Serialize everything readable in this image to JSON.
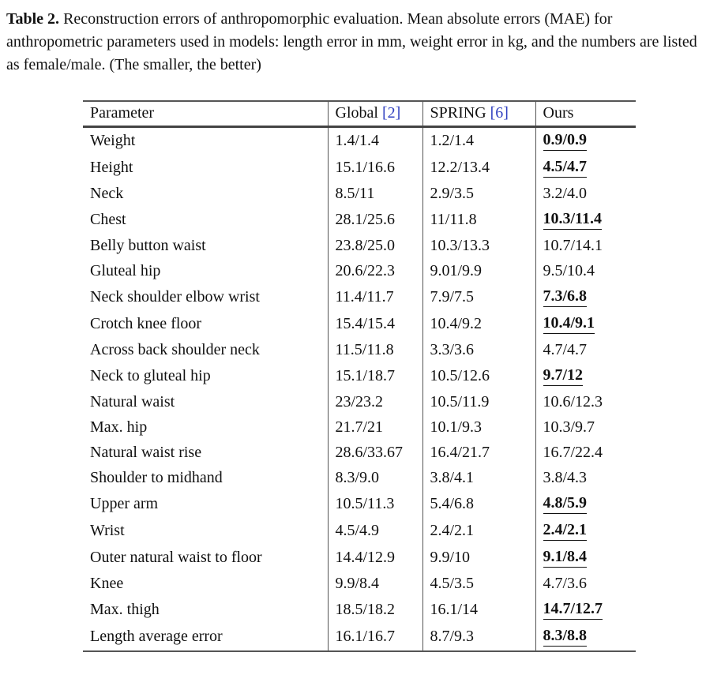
{
  "caption": {
    "label": "Table 2.",
    "text": " Reconstruction errors of anthropomorphic evaluation. Mean absolute errors (MAE) for anthropometric parameters used in models: length error in mm, weight error in kg, and the numbers are listed as female/male. (The smaller, the better)"
  },
  "colors": {
    "citation_blue": "#3040c0",
    "rule_dark": "#444444",
    "text": "#111111"
  },
  "table": {
    "headers": [
      {
        "text": "Parameter"
      },
      {
        "text": "Global ",
        "cite": "[2]"
      },
      {
        "text": "SPRING ",
        "cite": "[6]"
      },
      {
        "text": "Ours"
      }
    ],
    "rows": [
      {
        "parameter": "Weight",
        "global": "1.4/1.4",
        "spring": "1.2/1.4",
        "ours": "0.9/0.9",
        "best": true
      },
      {
        "parameter": "Height",
        "global": "15.1/16.6",
        "spring": "12.2/13.4",
        "ours": "4.5/4.7",
        "best": true
      },
      {
        "parameter": "Neck",
        "global": "8.5/11",
        "spring": "2.9/3.5",
        "ours": "3.2/4.0",
        "best": false
      },
      {
        "parameter": "Chest",
        "global": "28.1/25.6",
        "spring": "11/11.8",
        "ours": "10.3/11.4",
        "best": true
      },
      {
        "parameter": "Belly button waist",
        "global": "23.8/25.0",
        "spring": "10.3/13.3",
        "ours": "10.7/14.1",
        "best": false
      },
      {
        "parameter": "Gluteal hip",
        "global": "20.6/22.3",
        "spring": "9.01/9.9",
        "ours": "9.5/10.4",
        "best": false
      },
      {
        "parameter": "Neck shoulder elbow wrist",
        "global": "11.4/11.7",
        "spring": "7.9/7.5",
        "ours": "7.3/6.8",
        "best": true
      },
      {
        "parameter": "Crotch knee floor",
        "global": "15.4/15.4",
        "spring": "10.4/9.2",
        "ours": "10.4/9.1",
        "best": true
      },
      {
        "parameter": "Across back shoulder neck",
        "global": "11.5/11.8",
        "spring": "3.3/3.6",
        "ours": "4.7/4.7",
        "best": false
      },
      {
        "parameter": "Neck to gluteal hip",
        "global": "15.1/18.7",
        "spring": "10.5/12.6",
        "ours": "9.7/12",
        "best": true
      },
      {
        "parameter": "Natural waist",
        "global": "23/23.2",
        "spring": "10.5/11.9",
        "ours": "10.6/12.3",
        "best": false
      },
      {
        "parameter": "Max. hip",
        "global": "21.7/21",
        "spring": "10.1/9.3",
        "ours": "10.3/9.7",
        "best": false
      },
      {
        "parameter": "Natural waist rise",
        "global": "28.6/33.67",
        "spring": "16.4/21.7",
        "ours": "16.7/22.4",
        "best": false
      },
      {
        "parameter": "Shoulder to midhand",
        "global": "8.3/9.0",
        "spring": "3.8/4.1",
        "ours": "3.8/4.3",
        "best": false
      },
      {
        "parameter": "Upper arm",
        "global": "10.5/11.3",
        "spring": "5.4/6.8",
        "ours": "4.8/5.9",
        "best": true
      },
      {
        "parameter": "Wrist",
        "global": "4.5/4.9",
        "spring": "2.4/2.1",
        "ours": "2.4/2.1",
        "best": true
      },
      {
        "parameter": "Outer natural waist to floor",
        "global": "14.4/12.9",
        "spring": "9.9/10",
        "ours": "9.1/8.4",
        "best": true
      },
      {
        "parameter": "Knee",
        "global": "9.9/8.4",
        "spring": "4.5/3.5",
        "ours": "4.7/3.6",
        "best": false
      },
      {
        "parameter": "Max. thigh",
        "global": "18.5/18.2",
        "spring": "16.1/14",
        "ours": "14.7/12.7",
        "best": true
      },
      {
        "parameter": "Length average error",
        "global": "16.1/16.7",
        "spring": "8.7/9.3",
        "ours": "8.3/8.8",
        "best": true
      }
    ]
  }
}
